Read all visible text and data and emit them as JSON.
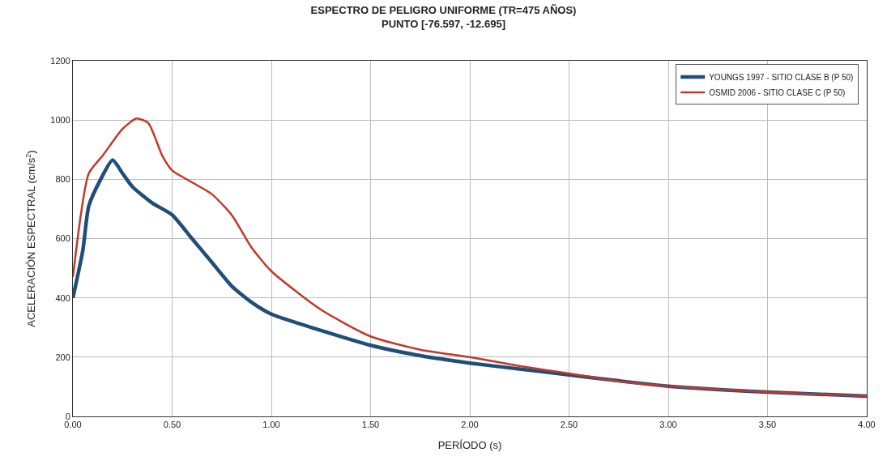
{
  "chart_data": {
    "type": "line",
    "title": "ESPECTRO DE PELIGRO UNIFORME (TR=475 AÑOS)\nPUNTO [-76.597, -12.695]",
    "xlabel": "PERÍODO (s)",
    "ylabel": "ACELERACIÓN ESPECTRAL (cm/s$^{2}$)",
    "xlim": [
      0,
      4
    ],
    "xticks": [
      {
        "value": 0,
        "label": "0.00"
      },
      {
        "value": 0.5,
        "label": "0.50"
      },
      {
        "value": 1,
        "label": "1.00"
      },
      {
        "value": 1.5,
        "label": "1.50"
      },
      {
        "value": 2,
        "label": "2.00"
      },
      {
        "value": 2.5,
        "label": "2.50"
      },
      {
        "value": 3,
        "label": "3.00"
      },
      {
        "value": 3.5,
        "label": "3.50"
      },
      {
        "value": 4,
        "label": "4.00"
      }
    ],
    "ylim": [
      0,
      1200
    ],
    "yticks": [
      0,
      200,
      400,
      600,
      800,
      1000,
      1200
    ],
    "grid": true,
    "legend": "top right",
    "marker": "none",
    "line_style": "solid",
    "series": [
      {
        "name": "YOUNGS 1997 - SITIO CLASE B (P 50)",
        "color": "#1f4e79",
        "x": [
          0,
          0.05,
          0.08,
          0.14,
          0.2,
          0.25,
          0.3,
          0.4,
          0.5,
          0.6,
          0.7,
          0.8,
          0.9,
          1.0,
          1.25,
          1.5,
          1.75,
          2.0,
          2.25,
          2.5,
          2.75,
          3.0,
          3.5,
          4.0
        ],
        "values": [
          400,
          560,
          710,
          800,
          865,
          820,
          775,
          720,
          680,
          600,
          520,
          440,
          385,
          345,
          290,
          240,
          205,
          180,
          160,
          140,
          120,
          102,
          82,
          68
        ]
      },
      {
        "name": "OSMID 2006 - SITIO CLASE C (P 50)",
        "color": "#c0392b",
        "x": [
          0,
          0.08,
          0.15,
          0.25,
          0.32,
          0.38,
          0.45,
          0.5,
          0.6,
          0.7,
          0.8,
          0.9,
          1.0,
          1.25,
          1.5,
          1.75,
          2.0,
          2.25,
          2.5,
          2.75,
          3.0,
          3.5,
          4.0
        ],
        "values": [
          470,
          820,
          880,
          970,
          1005,
          990,
          880,
          830,
          790,
          750,
          680,
          570,
          490,
          360,
          270,
          225,
          200,
          170,
          145,
          118,
          102,
          82,
          68
        ]
      }
    ]
  }
}
